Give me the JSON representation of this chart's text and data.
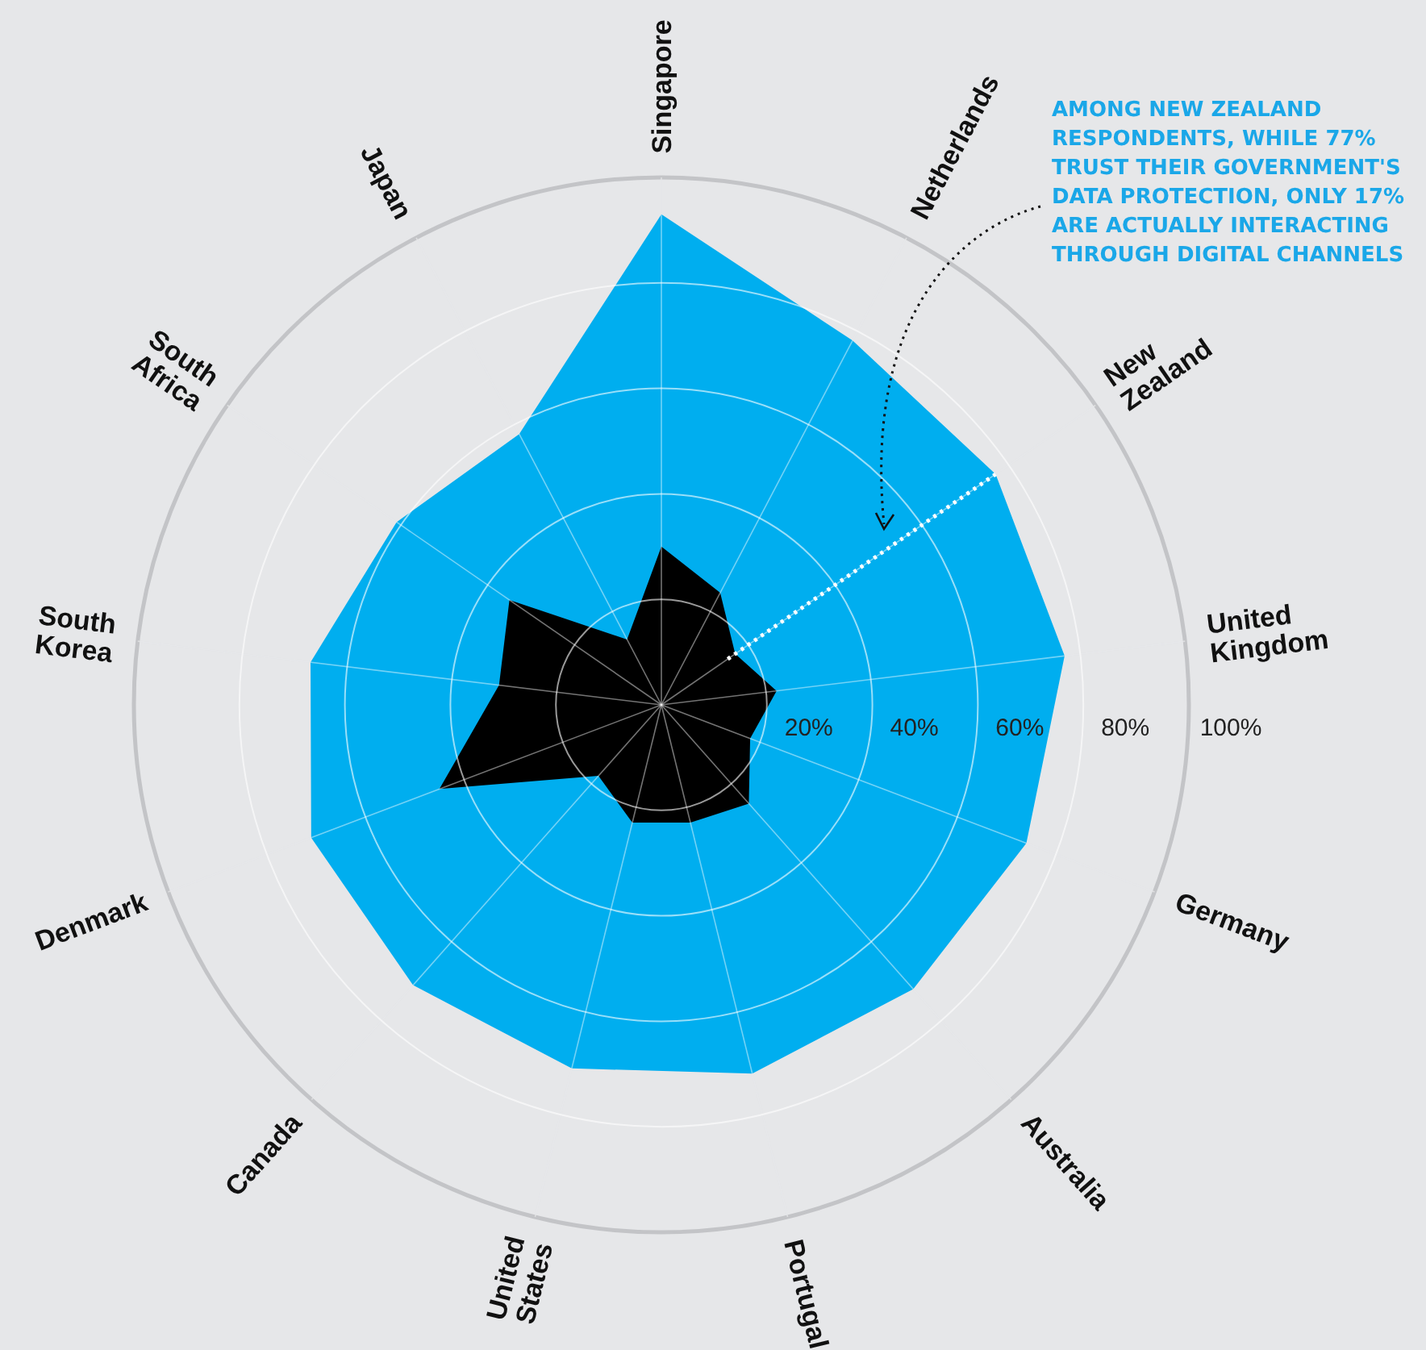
{
  "chart_data": {
    "type": "radar",
    "categories": [
      "Singapore",
      "Netherlands",
      "New Zealand",
      "United Kingdom",
      "Germany",
      "Australia",
      "Portugal",
      "United States",
      "Canada",
      "Denmark",
      "South Korea",
      "South Africa",
      "Japan"
    ],
    "series": [
      {
        "color": "#00aeef",
        "values": [
          93,
          78,
          77,
          77,
          74,
          72,
          72,
          71,
          71,
          71,
          67,
          61,
          58
        ]
      },
      {
        "color": "#000000",
        "values": [
          30,
          24,
          17,
          22,
          18,
          25,
          23,
          23,
          18,
          45,
          31,
          35,
          14
        ]
      }
    ],
    "ylim": [
      0,
      100
    ],
    "yticks": [
      {
        "value": 20,
        "label": "20%"
      },
      {
        "value": 40,
        "label": "40%"
      },
      {
        "value": 60,
        "label": "60%"
      },
      {
        "value": 80,
        "label": "80%"
      },
      {
        "value": 100,
        "label": "100%"
      }
    ],
    "grid": true,
    "annotations": [
      {
        "text": "AMONG NEW ZEALAND RESPONDENTS, WHILE 77% TRUST THEIR GOVERNMENT'S DATA PROTECTION, ONLY 17% ARE ACTUALLY INTERACTING THROUGH DIGITAL CHANNELS",
        "x": "New Zealand"
      }
    ]
  }
}
